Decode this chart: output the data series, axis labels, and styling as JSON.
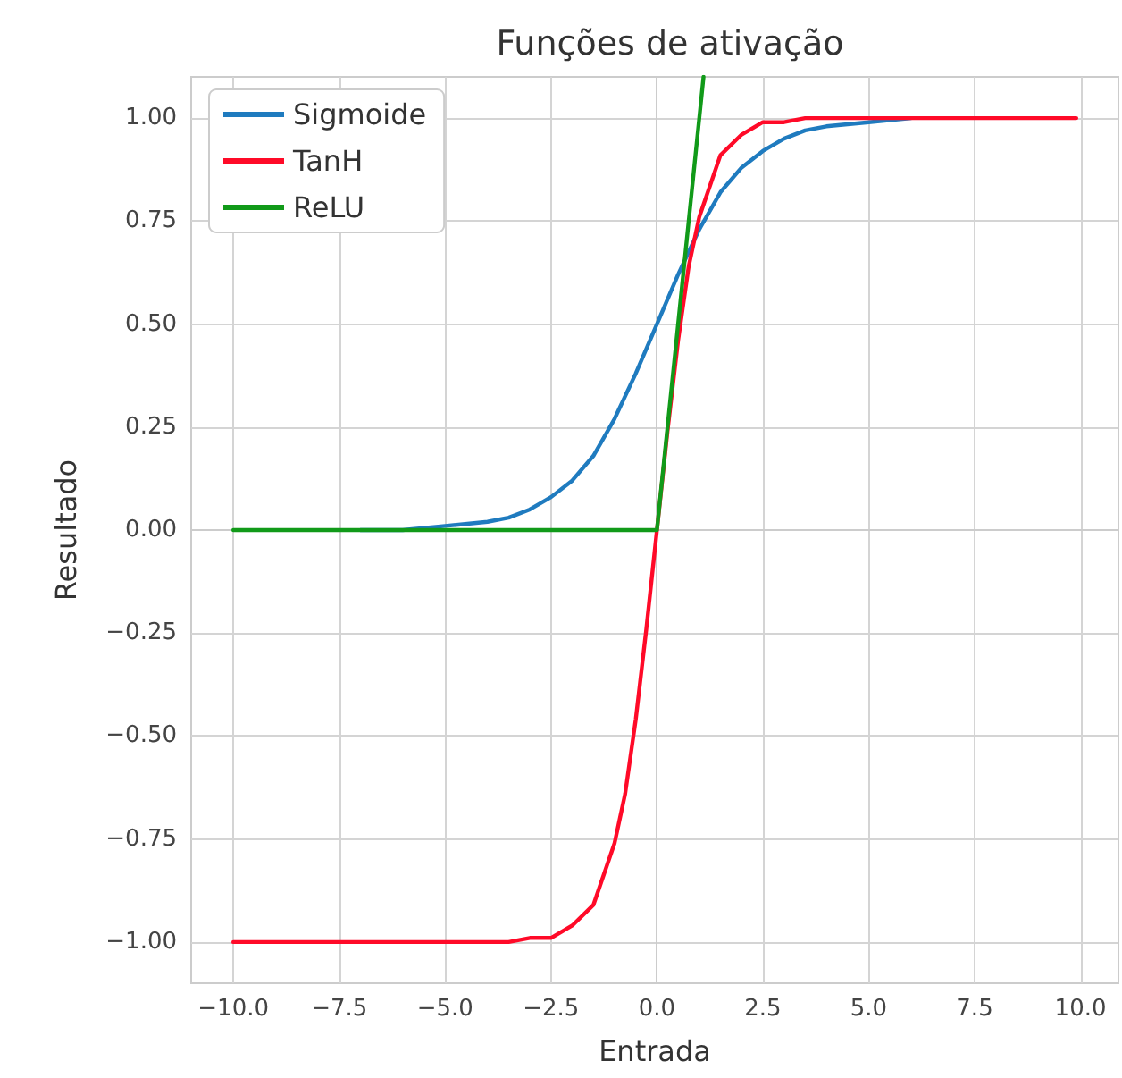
{
  "chart_data": {
    "type": "line",
    "title": "Funções de ativação",
    "xlabel": "Entrada",
    "ylabel": "Resultado",
    "series": [
      {
        "name": "Sigmoide",
        "color": "#1f7bbf",
        "x": [
          -7,
          -6,
          -5,
          -4,
          -3.5,
          -3,
          -2.5,
          -2,
          -1.5,
          -1,
          -0.5,
          0,
          0.5,
          1,
          1.5,
          2,
          2.5,
          3,
          3.5,
          4,
          5,
          6
        ],
        "values": [
          0,
          0,
          0.01,
          0.02,
          0.03,
          0.05,
          0.08,
          0.12,
          0.18,
          0.27,
          0.38,
          0.5,
          0.62,
          0.73,
          0.82,
          0.88,
          0.92,
          0.95,
          0.97,
          0.98,
          0.99,
          1
        ]
      },
      {
        "name": "TanH",
        "color": "#ff0a28",
        "x": [
          -10,
          -9,
          -8,
          -7,
          -6,
          -5,
          -4,
          -3.5,
          -3,
          -2.5,
          -2,
          -1.5,
          -1,
          -0.75,
          -0.5,
          -0.25,
          0,
          0.25,
          0.5,
          0.75,
          1,
          1.5,
          2,
          2.5,
          3,
          3.5,
          4,
          5,
          6,
          7,
          8,
          9,
          9.9
        ],
        "values": [
          -1,
          -1,
          -1,
          -1,
          -1,
          -1,
          -1,
          -1,
          -0.99,
          -0.99,
          -0.96,
          -0.91,
          -0.76,
          -0.64,
          -0.46,
          -0.24,
          0,
          0.24,
          0.46,
          0.64,
          0.76,
          0.91,
          0.96,
          0.99,
          0.99,
          1,
          1,
          1,
          1,
          1,
          1,
          1,
          1
        ]
      },
      {
        "name": "ReLU",
        "color": "#119a19",
        "x": [
          -10,
          0,
          1.1
        ],
        "values": [
          0,
          0,
          1.1
        ]
      }
    ],
    "xlim": [
      -10.995,
      10.895
    ],
    "ylim": [
      -1.1,
      1.1
    ],
    "xticks": [
      {
        "value": -10,
        "label": "−10.0"
      },
      {
        "value": -7.5,
        "label": "−7.5"
      },
      {
        "value": -5,
        "label": "−5.0"
      },
      {
        "value": -2.5,
        "label": "−2.5"
      },
      {
        "value": 0,
        "label": "0.0"
      },
      {
        "value": 2.5,
        "label": "2.5"
      },
      {
        "value": 5,
        "label": "5.0"
      },
      {
        "value": 7.5,
        "label": "7.5"
      },
      {
        "value": 10,
        "label": "10.0"
      }
    ],
    "yticks": [
      {
        "value": -1,
        "label": "−1.00"
      },
      {
        "value": -0.75,
        "label": "−0.75"
      },
      {
        "value": -0.5,
        "label": "−0.50"
      },
      {
        "value": -0.25,
        "label": "−0.25"
      },
      {
        "value": 0,
        "label": "0.00"
      },
      {
        "value": 0.25,
        "label": "0.25"
      },
      {
        "value": 0.5,
        "label": "0.50"
      },
      {
        "value": 0.75,
        "label": "0.75"
      },
      {
        "value": 1,
        "label": "1.00"
      }
    ],
    "grid": true,
    "legend": "top left"
  }
}
